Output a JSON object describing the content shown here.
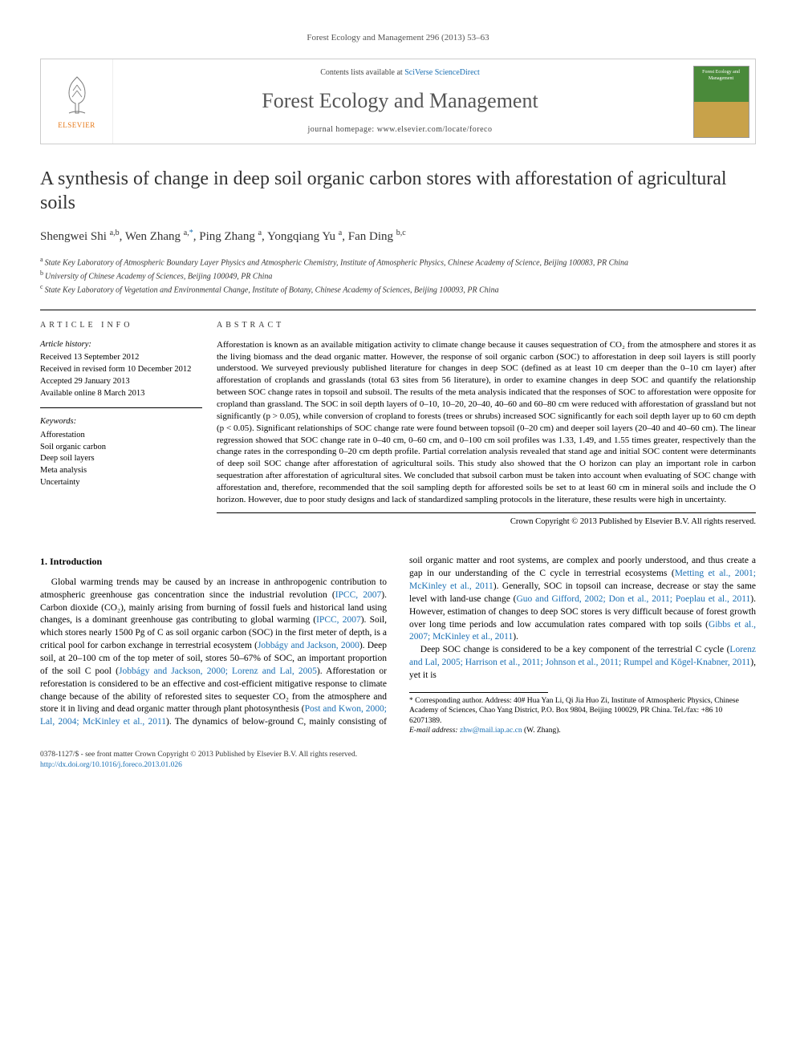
{
  "runningHeader": "Forest Ecology and Management 296 (2013) 53–63",
  "banner": {
    "elsevier": "ELSEVIER",
    "contentsPrefix": "Contents lists available at ",
    "contentsLink": "SciVerse ScienceDirect",
    "journalTitle": "Forest Ecology and Management",
    "homepagePrefix": "journal homepage: ",
    "homepage": "www.elsevier.com/locate/foreco",
    "coverLabel": "Forest Ecology and Management",
    "colors": {
      "treeOutline": "#666666",
      "elsevierOrange": "#e67817",
      "link": "#1a6fb3"
    }
  },
  "title": "A synthesis of change in deep soil organic carbon stores with afforestation of agricultural soils",
  "authorsHtmlParts": [
    {
      "name": "Shengwei Shi",
      "sup": "a,b"
    },
    {
      "name": "Wen Zhang",
      "sup": "a,",
      "corr": "*"
    },
    {
      "name": "Ping Zhang",
      "sup": "a"
    },
    {
      "name": "Yongqiang Yu",
      "sup": "a"
    },
    {
      "name": "Fan Ding",
      "sup": "b,c"
    }
  ],
  "affiliations": [
    {
      "sup": "a",
      "text": "State Key Laboratory of Atmospheric Boundary Layer Physics and Atmospheric Chemistry, Institute of Atmospheric Physics, Chinese Academy of Science, Beijing 100083, PR China"
    },
    {
      "sup": "b",
      "text": "University of Chinese Academy of Sciences, Beijing 100049, PR China"
    },
    {
      "sup": "c",
      "text": "State Key Laboratory of Vegetation and Environmental Change, Institute of Botany, Chinese Academy of Sciences, Beijing 100093, PR China"
    }
  ],
  "articleInfo": {
    "heading": "ARTICLE INFO",
    "historyLabel": "Article history:",
    "history": [
      "Received 13 September 2012",
      "Received in revised form 10 December 2012",
      "Accepted 29 January 2013",
      "Available online 8 March 2013"
    ],
    "keywordsLabel": "Keywords:",
    "keywords": [
      "Afforestation",
      "Soil organic carbon",
      "Deep soil layers",
      "Meta analysis",
      "Uncertainty"
    ]
  },
  "abstract": {
    "heading": "ABSTRACT",
    "text": "Afforestation is known as an available mitigation activity to climate change because it causes sequestration of CO₂ from the atmosphere and stores it as the living biomass and the dead organic matter. However, the response of soil organic carbon (SOC) to afforestation in deep soil layers is still poorly understood. We surveyed previously published literature for changes in deep SOC (defined as at least 10 cm deeper than the 0–10 cm layer) after afforestation of croplands and grasslands (total 63 sites from 56 literature), in order to examine changes in deep SOC and quantify the relationship between SOC change rates in topsoil and subsoil. The results of the meta analysis indicated that the responses of SOC to afforestation were opposite for cropland than grassland. The SOC in soil depth layers of 0–10, 10–20, 20–40, 40–60 and 60–80 cm were reduced with afforestation of grassland but not significantly (p > 0.05), while conversion of cropland to forests (trees or shrubs) increased SOC significantly for each soil depth layer up to 60 cm depth (p < 0.05). Significant relationships of SOC change rate were found between topsoil (0–20 cm) and deeper soil layers (20–40 and 40–60 cm). The linear regression showed that SOC change rate in 0–40 cm, 0–60 cm, and 0–100 cm soil profiles was 1.33, 1.49, and 1.55 times greater, respectively than the change rates in the corresponding 0–20 cm depth profile. Partial correlation analysis revealed that stand age and initial SOC content were determinants of deep soil SOC change after afforestation of agricultural soils. This study also showed that the O horizon can play an important role in carbon sequestration after afforestation of agricultural sites. We concluded that subsoil carbon must be taken into account when evaluating of SOC change with afforestation and, therefore, recommended that the soil sampling depth for afforested soils be set to at least 60 cm in mineral soils and include the O horizon. However, due to poor study designs and lack of standardized sampling protocols in the literature, these results were high in uncertainty.",
    "copyright": "Crown Copyright © 2013 Published by Elsevier B.V. All rights reserved."
  },
  "section1": {
    "heading": "1. Introduction",
    "p1a": "Global warming trends may be caused by an increase in anthropogenic contribution to atmospheric greenhouse gas concentration since the industrial revolution (",
    "p1_ref1": "IPCC, 2007",
    "p1b": "). Carbon dioxide (CO₂), mainly arising from burning of fossil fuels and historical land using changes, is a dominant greenhouse gas contributing to global warming (",
    "p1_ref2": "IPCC, 2007",
    "p1c": "). Soil, which stores nearly 1500 Pg of C as soil organic carbon (SOC) in the first meter of depth, is a critical pool for carbon exchange in terrestrial ecosystem (",
    "p1_ref3": "Jobbágy and Jackson, 2000",
    "p1d": "). Deep soil, at 20–100 cm of the top meter of soil, stores 50–67% of SOC, an important proportion of the soil C pool (",
    "p1_ref4": "Jobbágy and Jackson, 2000; Lorenz and Lal, 2005",
    "p1e": "). Afforestation or refores",
    "p1f": "tation is considered to be an effective and cost-efficient mitigative response to climate change because of the ability of reforested sites to sequester CO₂ from the atmosphere and store it in living and dead organic matter through plant photosynthesis (",
    "p1_ref5": "Post and Kwon, 2000; Lal, 2004; McKinley et al., 2011",
    "p1g": "). The dynamics of below-ground C, mainly consisting of soil organic matter and root systems, are complex and poorly understood, and thus create a gap in our understanding of the C cycle in terrestrial ecosystems (",
    "p1_ref6": "Metting et al., 2001; McKinley et al., 2011",
    "p1h": "). Generally, SOC in topsoil can increase, decrease or stay the same level with land-use change (",
    "p1_ref7": "Guo and Gifford, 2002; Don et al., 2011; Poeplau et al., 2011",
    "p1i": "). However, estimation of changes to deep SOC stores is very difficult because of forest growth over long time periods and low accumulation rates compared with top soils (",
    "p1_ref8": "Gibbs et al., 2007; McKinley et al., 2011",
    "p1j": ").",
    "p2a": "Deep SOC change is considered to be a key component of the terrestrial C cycle (",
    "p2_ref1": "Lorenz and Lal, 2005; Harrison et al., 2011; Johnson et al., 2011; Rumpel and Kögel-Knabner, 2011",
    "p2b": "), yet it is"
  },
  "footnote": {
    "corrLabel": "* Corresponding author. Address: 40# Hua Yan Li, Qi Jia Huo Zi, Institute of Atmospheric Physics, Chinese Academy of Sciences, Chao Yang District, P.O. Box 9804, Beijing 100029, PR China. Tel./fax: +86 10 62071389.",
    "emailLabel": "E-mail address: ",
    "email": "zhw@mail.iap.ac.cn",
    "emailSuffix": " (W. Zhang)."
  },
  "pageFooter": {
    "line1a": "0378-1127/$ - see front matter Crown Copyright © 2013 Published by Elsevier B.V. All rights reserved.",
    "line2": "http://dx.doi.org/10.1016/j.foreco.2013.01.026"
  }
}
